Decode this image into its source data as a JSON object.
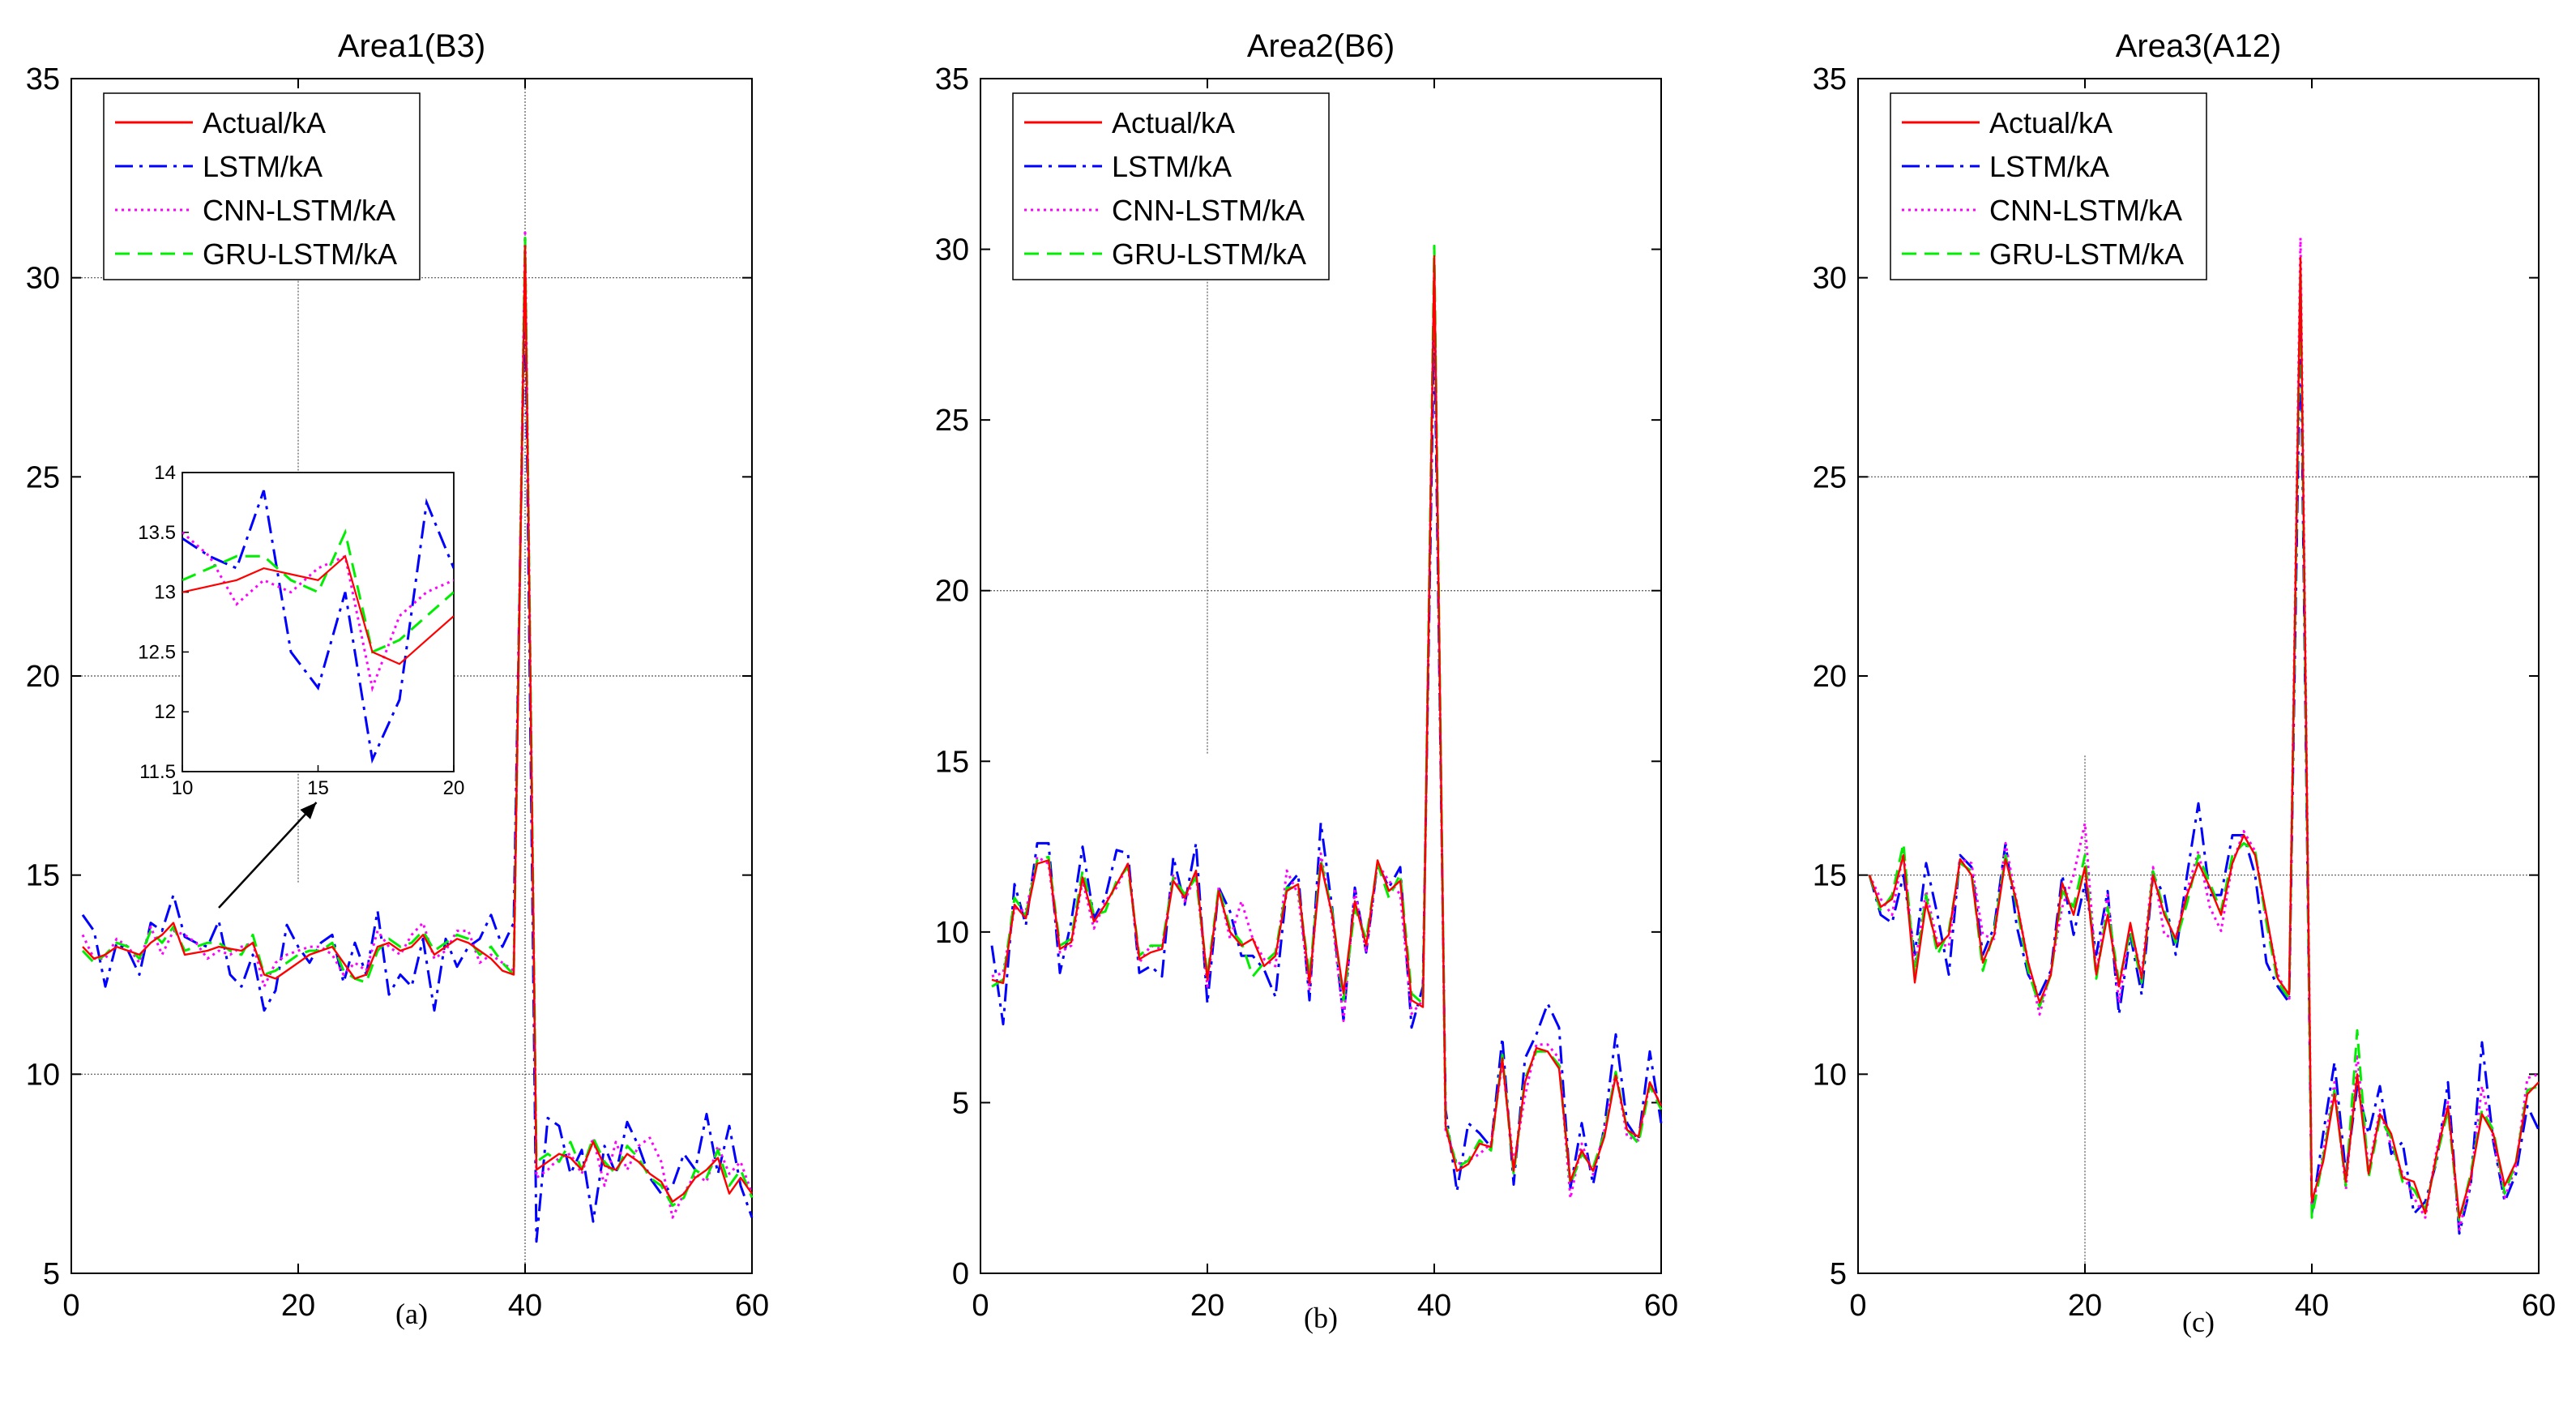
{
  "chart_data": [
    {
      "type": "line",
      "title": "Area1(B3)",
      "caption": "(a)",
      "xlim": [
        0,
        60
      ],
      "ylim": [
        5,
        35
      ],
      "xticks": [
        0,
        20,
        40,
        60
      ],
      "yticks": [
        5,
        10,
        15,
        20,
        25,
        30,
        35
      ],
      "grid": "partial",
      "legend": "top-left",
      "x": [
        1,
        2,
        3,
        4,
        5,
        6,
        7,
        8,
        9,
        10,
        11,
        12,
        13,
        14,
        15,
        16,
        17,
        18,
        19,
        20,
        21,
        22,
        23,
        24,
        25,
        26,
        27,
        28,
        29,
        30,
        31,
        32,
        33,
        34,
        35,
        36,
        37,
        38,
        39,
        40,
        41,
        42,
        43,
        44,
        45,
        46,
        47,
        48,
        49,
        50,
        51,
        52,
        53,
        54,
        55,
        56,
        57,
        58,
        59,
        60
      ],
      "series": [
        {
          "name": "Actual/kA",
          "color": "#ff0000",
          "dash": "solid",
          "values": [
            13.2,
            12.9,
            13.0,
            13.2,
            13.1,
            13.0,
            13.3,
            13.5,
            13.8,
            13.0,
            13.05,
            13.1,
            13.2,
            13.15,
            13.1,
            13.3,
            12.5,
            12.4,
            12.6,
            12.8,
            13.0,
            13.1,
            13.2,
            12.8,
            12.4,
            12.5,
            13.2,
            13.3,
            13.1,
            13.2,
            13.5,
            13.0,
            13.2,
            13.4,
            13.3,
            13.1,
            12.9,
            12.6,
            12.5,
            30.8,
            7.6,
            7.8,
            8.0,
            7.9,
            7.6,
            8.3,
            7.7,
            7.6,
            8.0,
            7.8,
            7.5,
            7.3,
            6.8,
            7.0,
            7.4,
            7.6,
            7.9,
            7.0,
            7.4,
            7.0
          ]
        },
        {
          "name": "LSTM/kA",
          "color": "#0000ff",
          "dash": "dashdot",
          "values": [
            14.0,
            13.6,
            12.2,
            13.3,
            13.1,
            12.5,
            13.8,
            13.6,
            14.5,
            13.45,
            13.3,
            13.2,
            13.85,
            12.5,
            12.2,
            13.0,
            11.6,
            12.1,
            13.75,
            13.2,
            12.8,
            13.3,
            13.5,
            12.3,
            13.3,
            12.5,
            14.1,
            12.0,
            12.5,
            12.2,
            13.4,
            11.6,
            13.4,
            12.7,
            13.2,
            13.4,
            14.0,
            13.2,
            13.8,
            30.0,
            5.8,
            8.9,
            8.7,
            7.5,
            8.1,
            6.3,
            8.2,
            7.5,
            8.8,
            8.2,
            7.4,
            7.0,
            7.2,
            8.0,
            7.6,
            9.0,
            7.5,
            8.7,
            7.2,
            6.4
          ]
        },
        {
          "name": "CNN-LSTM/kA",
          "color": "#ff00ff",
          "dash": "dotted",
          "values": [
            13.5,
            12.9,
            12.9,
            13.4,
            13.2,
            12.8,
            13.7,
            13.0,
            13.6,
            13.5,
            13.3,
            12.9,
            13.1,
            13.0,
            13.2,
            13.3,
            12.2,
            12.8,
            13.0,
            13.1,
            13.2,
            13.2,
            13.0,
            12.5,
            12.8,
            12.6,
            13.6,
            13.2,
            13.0,
            13.5,
            13.8,
            12.9,
            13.1,
            13.6,
            13.6,
            12.8,
            13.0,
            12.8,
            12.6,
            31.2,
            7.4,
            7.6,
            7.9,
            8.0,
            7.5,
            8.4,
            7.2,
            8.3,
            7.6,
            8.2,
            8.4,
            7.8,
            6.4,
            7.0,
            7.5,
            7.3,
            8.2,
            7.5,
            7.8,
            7.0
          ]
        },
        {
          "name": "GRU-LSTM/kA",
          "color": "#00ee00",
          "dash": "dashed",
          "values": [
            13.1,
            12.8,
            13.0,
            13.3,
            13.2,
            12.9,
            13.6,
            13.3,
            13.7,
            13.1,
            13.2,
            13.3,
            13.3,
            13.1,
            13.0,
            13.5,
            12.5,
            12.6,
            12.8,
            13.0,
            13.1,
            13.1,
            13.3,
            12.6,
            12.4,
            12.3,
            13.1,
            13.4,
            13.2,
            13.3,
            13.6,
            13.1,
            13.3,
            13.5,
            13.4,
            13.0,
            13.2,
            12.8,
            12.5,
            31.0,
            7.8,
            8.0,
            7.8,
            8.3,
            7.6,
            8.4,
            7.8,
            7.5,
            8.2,
            7.9,
            7.4,
            7.2,
            6.7,
            6.9,
            7.6,
            7.4,
            8.1,
            7.2,
            7.6,
            6.9
          ]
        }
      ],
      "inset": {
        "xlim": [
          10,
          20
        ],
        "ylim": [
          11.5,
          14
        ],
        "xticks": [
          10,
          15,
          20
        ],
        "yticks": [
          11.5,
          12,
          12.5,
          13,
          13.5,
          14
        ],
        "annotation": "arrow from the inset (x≈15) down to the curves near x≈13"
      }
    },
    {
      "type": "line",
      "title": "Area2(B6)",
      "caption": "(b)",
      "xlim": [
        0,
        60
      ],
      "ylim": [
        0,
        35
      ],
      "xticks": [
        0,
        20,
        40,
        60
      ],
      "yticks": [
        0,
        5,
        10,
        15,
        20,
        25,
        30,
        35
      ],
      "grid": "partial",
      "legend": "top-left",
      "x": [
        1,
        2,
        3,
        4,
        5,
        6,
        7,
        8,
        9,
        10,
        11,
        12,
        13,
        14,
        15,
        16,
        17,
        18,
        19,
        20,
        21,
        22,
        23,
        24,
        25,
        26,
        27,
        28,
        29,
        30,
        31,
        32,
        33,
        34,
        35,
        36,
        37,
        38,
        39,
        40,
        41,
        42,
        43,
        44,
        45,
        46,
        47,
        48,
        49,
        50,
        51,
        52,
        53,
        54,
        55,
        56,
        57,
        58,
        59,
        60
      ],
      "series": [
        {
          "name": "Actual/kA",
          "color": "#ff0000",
          "dash": "solid",
          "values": [
            8.6,
            8.5,
            10.8,
            10.4,
            12.0,
            12.1,
            9.5,
            9.7,
            11.6,
            10.3,
            10.8,
            11.4,
            12.0,
            9.2,
            9.4,
            9.5,
            11.5,
            11.0,
            11.8,
            8.6,
            11.2,
            10.0,
            9.6,
            9.8,
            9.0,
            9.3,
            11.2,
            11.4,
            8.5,
            12.0,
            10.5,
            8.2,
            10.9,
            9.6,
            12.1,
            11.2,
            11.5,
            8.0,
            7.8,
            29.8,
            4.3,
            3.0,
            3.2,
            3.8,
            3.7,
            6.3,
            3.0,
            5.6,
            6.6,
            6.5,
            6.0,
            2.7,
            3.6,
            3.0,
            4.0,
            5.8,
            4.2,
            4.0,
            5.6,
            4.9
          ]
        },
        {
          "name": "LSTM/kA",
          "color": "#0000ff",
          "dash": "dashdot",
          "values": [
            9.6,
            7.3,
            11.4,
            10.2,
            12.6,
            12.6,
            8.8,
            10.3,
            12.5,
            10.4,
            11.0,
            12.4,
            12.3,
            8.8,
            9.0,
            8.7,
            12.2,
            10.8,
            12.6,
            7.9,
            11.3,
            10.6,
            9.3,
            9.3,
            8.9,
            8.1,
            11.3,
            11.7,
            8.0,
            13.2,
            10.7,
            7.4,
            11.3,
            9.4,
            12.0,
            11.3,
            11.9,
            7.2,
            8.4,
            28.0,
            4.8,
            2.4,
            4.4,
            4.1,
            3.7,
            6.9,
            2.6,
            6.3,
            7.0,
            7.9,
            7.2,
            2.5,
            4.4,
            2.6,
            4.3,
            7.0,
            4.4,
            3.9,
            6.5,
            4.4
          ]
        },
        {
          "name": "CNN-LSTM/kA",
          "color": "#ff00ff",
          "dash": "dotted",
          "values": [
            8.7,
            8.8,
            10.7,
            10.6,
            12.2,
            12.0,
            9.4,
            9.6,
            11.5,
            10.1,
            10.9,
            11.3,
            12.0,
            9.1,
            9.6,
            9.5,
            11.7,
            10.9,
            11.7,
            8.4,
            11.3,
            9.8,
            10.9,
            9.8,
            9.2,
            9.0,
            11.8,
            11.1,
            8.3,
            12.3,
            10.4,
            7.4,
            11.2,
            9.4,
            12.0,
            11.5,
            11.1,
            7.6,
            8.0,
            29.5,
            4.2,
            3.2,
            3.3,
            3.5,
            3.8,
            6.2,
            3.2,
            5.2,
            6.7,
            6.7,
            6.3,
            2.2,
            3.8,
            2.9,
            4.2,
            5.9,
            4.0,
            3.9,
            5.6,
            4.9
          ]
        },
        {
          "name": "GRU-LSTM/kA",
          "color": "#00ee00",
          "dash": "dashed",
          "values": [
            8.4,
            8.6,
            11.0,
            10.5,
            12.1,
            12.2,
            9.6,
            9.8,
            11.8,
            10.5,
            10.6,
            11.5,
            11.9,
            9.3,
            9.6,
            9.6,
            11.6,
            11.1,
            11.6,
            8.7,
            11.3,
            10.1,
            9.7,
            8.7,
            9.1,
            9.4,
            11.3,
            11.3,
            8.7,
            12.1,
            10.6,
            8.0,
            10.7,
            9.8,
            12.0,
            11.0,
            11.7,
            8.2,
            7.9,
            30.1,
            4.4,
            3.1,
            3.3,
            3.9,
            3.6,
            6.4,
            2.9,
            5.7,
            6.5,
            6.5,
            6.1,
            2.6,
            3.5,
            3.1,
            4.1,
            5.9,
            4.2,
            3.8,
            5.5,
            4.8
          ]
        }
      ]
    },
    {
      "type": "line",
      "title": "Area3(A12)",
      "caption": "(c)",
      "xlim": [
        0,
        60
      ],
      "ylim": [
        5,
        35
      ],
      "xticks": [
        0,
        20,
        40,
        60
      ],
      "yticks": [
        5,
        10,
        15,
        20,
        25,
        30,
        35
      ],
      "grid": "partial",
      "legend": "top-left",
      "x": [
        1,
        2,
        3,
        4,
        5,
        6,
        7,
        8,
        9,
        10,
        11,
        12,
        13,
        14,
        15,
        16,
        17,
        18,
        19,
        20,
        21,
        22,
        23,
        24,
        25,
        26,
        27,
        28,
        29,
        30,
        31,
        32,
        33,
        34,
        35,
        36,
        37,
        38,
        39,
        40,
        41,
        42,
        43,
        44,
        45,
        46,
        47,
        48,
        49,
        50,
        51,
        52,
        53,
        54,
        55,
        56,
        57,
        58,
        59,
        60
      ],
      "series": [
        {
          "name": "Actual/kA",
          "color": "#ff0000",
          "dash": "solid",
          "values": [
            15.0,
            14.2,
            14.4,
            15.5,
            12.3,
            14.3,
            13.2,
            13.5,
            15.4,
            15.0,
            12.8,
            13.5,
            15.4,
            14.3,
            12.8,
            11.8,
            12.5,
            14.8,
            14.0,
            15.2,
            12.5,
            14.0,
            12.2,
            13.8,
            12.4,
            15.0,
            14.0,
            13.4,
            14.5,
            15.3,
            14.7,
            14.0,
            15.3,
            16.0,
            15.5,
            14.0,
            12.4,
            12.0,
            30.5,
            6.8,
            7.8,
            9.5,
            7.3,
            10.0,
            7.5,
            9.0,
            8.5,
            7.4,
            7.3,
            6.5,
            8.0,
            9.2,
            6.4,
            7.4,
            9.0,
            8.5,
            7.2,
            7.8,
            9.5,
            9.8
          ]
        },
        {
          "name": "LSTM/kA",
          "color": "#0000ff",
          "dash": "dashdot",
          "values": [
            15.0,
            14.0,
            13.8,
            15.0,
            13.0,
            15.3,
            14.0,
            12.5,
            15.5,
            15.2,
            13.0,
            13.7,
            15.8,
            13.7,
            12.5,
            12.0,
            12.6,
            15.0,
            13.5,
            14.8,
            13.0,
            14.6,
            11.5,
            13.5,
            12.0,
            15.0,
            14.5,
            13.0,
            15.0,
            16.8,
            14.5,
            14.5,
            16.0,
            16.0,
            15.0,
            12.8,
            12.2,
            11.8,
            29.0,
            6.5,
            8.5,
            10.3,
            7.5,
            9.7,
            8.5,
            9.7,
            8.0,
            8.3,
            6.5,
            6.8,
            7.8,
            9.8,
            6.0,
            7.2,
            10.8,
            8.3,
            6.8,
            7.5,
            9.2,
            8.6
          ]
        },
        {
          "name": "CNN-LSTM/kA",
          "color": "#ff00ff",
          "dash": "dotted",
          "values": [
            15.0,
            14.4,
            14.0,
            15.6,
            12.7,
            14.6,
            13.3,
            13.2,
            15.4,
            15.3,
            13.5,
            13.4,
            15.8,
            14.3,
            12.8,
            11.5,
            12.6,
            14.2,
            15.0,
            16.3,
            12.5,
            14.5,
            11.8,
            13.7,
            12.5,
            15.2,
            13.5,
            13.4,
            14.6,
            15.6,
            14.2,
            13.6,
            15.3,
            16.1,
            15.6,
            13.9,
            12.5,
            11.9,
            31.0,
            6.6,
            8.0,
            9.8,
            7.1,
            10.5,
            7.6,
            9.1,
            8.2,
            7.5,
            6.9,
            6.4,
            8.1,
            9.3,
            6.1,
            7.3,
            9.7,
            8.4,
            6.9,
            7.7,
            9.9,
            10.0
          ]
        },
        {
          "name": "GRU-LSTM/kA",
          "color": "#00ee00",
          "dash": "dashed",
          "values": [
            15.0,
            14.1,
            14.5,
            15.8,
            12.5,
            14.5,
            13.0,
            13.6,
            15.3,
            15.1,
            12.6,
            13.6,
            15.5,
            14.2,
            12.6,
            11.7,
            12.5,
            14.6,
            14.2,
            15.5,
            12.4,
            14.2,
            12.3,
            13.6,
            12.3,
            15.1,
            14.1,
            13.3,
            14.3,
            15.5,
            14.8,
            14.1,
            15.5,
            15.8,
            15.6,
            13.8,
            12.3,
            11.9,
            30.2,
            6.4,
            7.9,
            9.6,
            7.2,
            11.1,
            7.4,
            8.9,
            8.4,
            7.3,
            7.1,
            6.6,
            7.9,
            9.1,
            6.3,
            7.5,
            9.1,
            8.6,
            7.0,
            7.8,
            9.6,
            9.7
          ]
        }
      ]
    }
  ]
}
